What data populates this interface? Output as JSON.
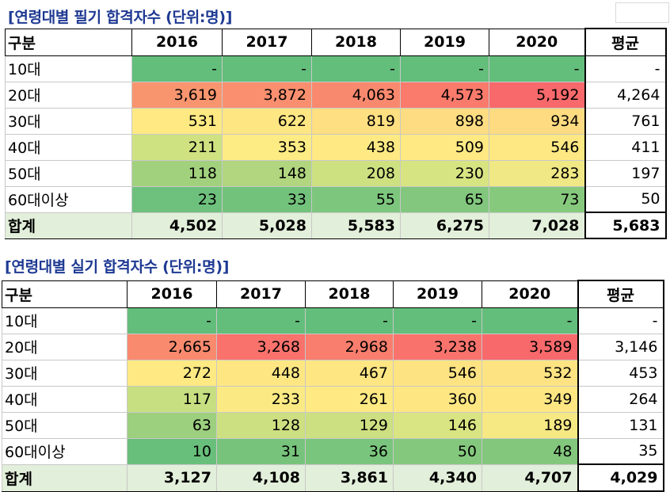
{
  "tables": [
    {
      "title": "[연령대별 필기 합격자수 (단위:명)]",
      "header": [
        "구분",
        "2016",
        "2017",
        "2018",
        "2019",
        "2020",
        "평균"
      ],
      "rows": [
        {
          "label": "10대",
          "values": [
            "-",
            "-",
            "-",
            "-",
            "-"
          ],
          "avg": "-",
          "colors": [
            "#63be7b",
            "#63be7b",
            "#63be7b",
            "#63be7b",
            "#63be7b"
          ]
        },
        {
          "label": "20대",
          "values": [
            "3,619",
            "3,872",
            "4,063",
            "4,573",
            "5,192"
          ],
          "avg": "4,264",
          "colors": [
            "#f8956f",
            "#f98f6f",
            "#f9896e",
            "#fa7a6c",
            "#f8696b"
          ]
        },
        {
          "label": "30대",
          "values": [
            "531",
            "622",
            "819",
            "898",
            "934"
          ],
          "avg": "761",
          "colors": [
            "#fee983",
            "#fee683",
            "#fedf81",
            "#fedc81",
            "#fedb81"
          ]
        },
        {
          "label": "40대",
          "values": [
            "211",
            "353",
            "438",
            "509",
            "546"
          ],
          "avg": "411",
          "colors": [
            "#cfe281",
            "#fdeb84",
            "#fee983",
            "#fee983",
            "#fee883"
          ]
        },
        {
          "label": "50대",
          "values": [
            "118",
            "148",
            "208",
            "230",
            "283"
          ],
          "avg": "197",
          "colors": [
            "#a2d17e",
            "#b1d67f",
            "#cde181",
            "#d7e482",
            "#f0e884"
          ]
        },
        {
          "label": "60대이상",
          "values": [
            "23",
            "33",
            "55",
            "65",
            "73"
          ],
          "avg": "50",
          "colors": [
            "#6ec17c",
            "#73c27c",
            "#7dc67d",
            "#82c77d",
            "#86c97d"
          ]
        }
      ],
      "total": {
        "label": "합계",
        "values": [
          "4,502",
          "5,028",
          "5,583",
          "6,275",
          "7,028"
        ],
        "avg": "5,683"
      }
    },
    {
      "title": "[연령대별 실기 합격자수 (단위:명)]",
      "header": [
        "구분",
        "2016",
        "2017",
        "2018",
        "2019",
        "2020",
        "평균"
      ],
      "rows": [
        {
          "label": "10대",
          "values": [
            "-",
            "-",
            "-",
            "-",
            "-"
          ],
          "avg": "-",
          "colors": [
            "#63be7b",
            "#63be7b",
            "#63be7b",
            "#63be7b",
            "#63be7b"
          ]
        },
        {
          "label": "20대",
          "values": [
            "2,665",
            "3,268",
            "2,968",
            "3,238",
            "3,589"
          ],
          "avg": "3,146",
          "colors": [
            "#f98a6e",
            "#f9726c",
            "#f97e6d",
            "#f9736c",
            "#f8696b"
          ]
        },
        {
          "label": "30대",
          "values": [
            "272",
            "448",
            "467",
            "546",
            "532"
          ],
          "avg": "453",
          "colors": [
            "#fee983",
            "#fee783",
            "#fee683",
            "#fee382",
            "#fee382"
          ]
        },
        {
          "label": "40대",
          "values": [
            "117",
            "233",
            "261",
            "360",
            "349"
          ],
          "avg": "264",
          "colors": [
            "#c7df81",
            "#fbea84",
            "#fee983",
            "#fee783",
            "#fee783"
          ]
        },
        {
          "label": "50대",
          "values": [
            "63",
            "128",
            "129",
            "146",
            "189"
          ],
          "avg": "131",
          "colors": [
            "#9ccf7e",
            "#ccdf81",
            "#cce081",
            "#d9e482",
            "#f6e883"
          ]
        },
        {
          "label": "60대이상",
          "values": [
            "10",
            "31",
            "36",
            "50",
            "48"
          ],
          "avg": "35",
          "colors": [
            "#68bf7b",
            "#77c37c",
            "#7ac57d",
            "#84c87d",
            "#83c77d"
          ]
        }
      ],
      "total": {
        "label": "합계",
        "values": [
          "3,127",
          "4,108",
          "3,861",
          "4,340",
          "4,707"
        ],
        "avg": "4,029"
      }
    }
  ]
}
